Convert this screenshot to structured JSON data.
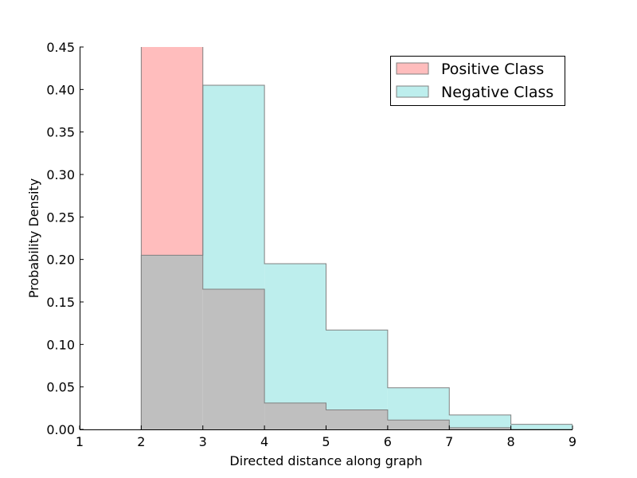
{
  "chart_data": {
    "type": "histogram",
    "xlabel": "Directed distance along graph",
    "ylabel": "Probability Density",
    "xlim": [
      1,
      9
    ],
    "ylim": [
      0,
      0.45
    ],
    "x_ticks": [
      "1",
      "2",
      "3",
      "4",
      "5",
      "6",
      "7",
      "8",
      "9"
    ],
    "y_ticks": [
      "0.00",
      "0.05",
      "0.10",
      "0.15",
      "0.20",
      "0.25",
      "0.30",
      "0.35",
      "0.40",
      "0.45"
    ],
    "bin_edges": [
      2,
      3,
      4,
      5,
      6,
      7,
      8,
      9
    ],
    "grid": false,
    "legend_position": "top-right",
    "series": [
      {
        "name": "Positive Class",
        "color": "#ffbdbd",
        "edge_color": "#808080",
        "values": [
          0.46,
          0.165,
          0.031,
          0.023,
          0.011,
          0.002,
          0.0
        ]
      },
      {
        "name": "Negative Class",
        "color": "#bdeeed",
        "edge_color": "#808080",
        "values": [
          0.205,
          0.405,
          0.195,
          0.117,
          0.049,
          0.017,
          0.006
        ]
      }
    ],
    "overlap_color": "#bfbfbf"
  }
}
